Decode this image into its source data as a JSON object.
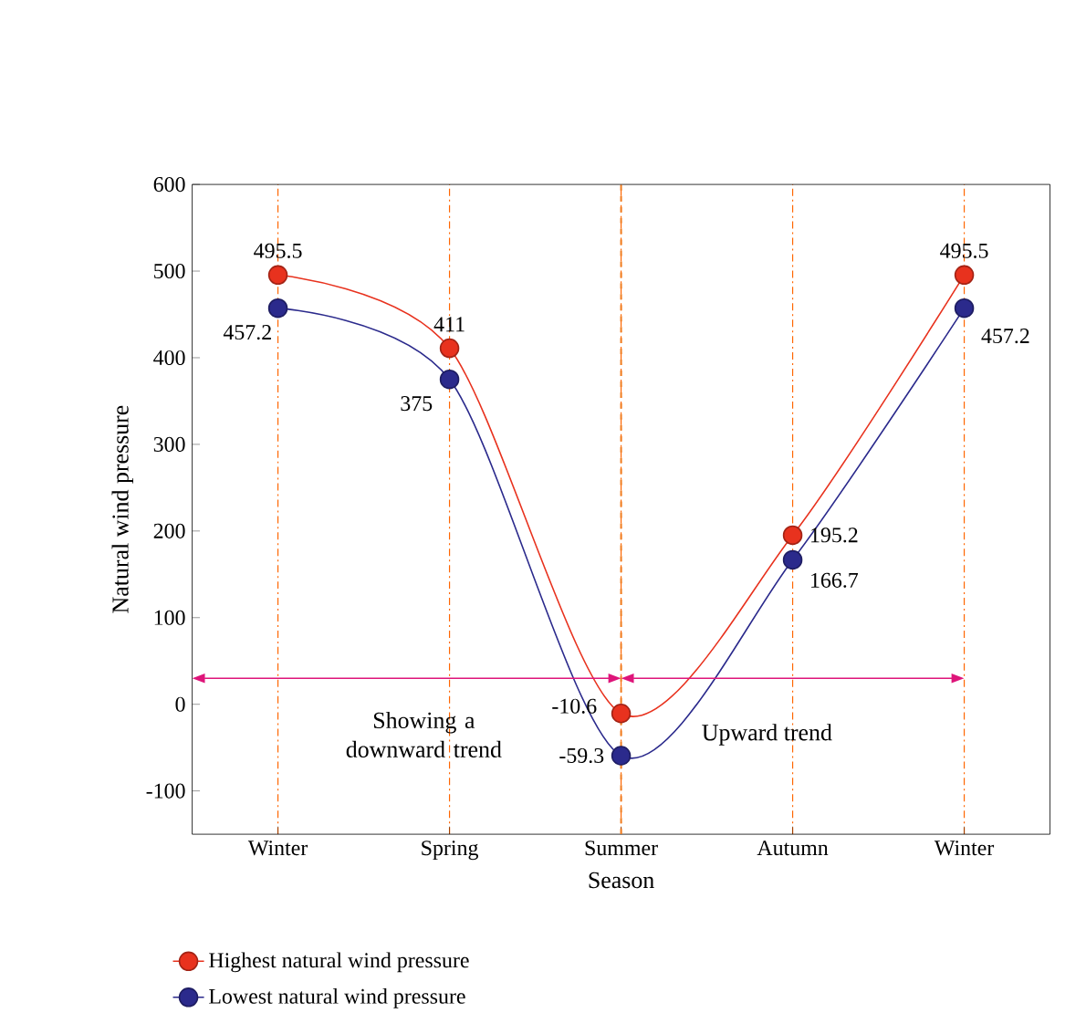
{
  "chart_data": {
    "type": "line",
    "xlabel": "Season",
    "ylabel": "Natural wind pressure",
    "categories": [
      "Winter",
      "Spring",
      "Summer",
      "Autumn",
      "Winter"
    ],
    "series": [
      {
        "name": "Highest natural wind pressure",
        "color": "#e8321e",
        "values": [
          495.5,
          411,
          -10.6,
          195.2,
          495.5
        ]
      },
      {
        "name": "Lowest natural wind pressure",
        "color": "#2b2a8c",
        "values": [
          457.2,
          375,
          -59.3,
          166.7,
          457.2
        ]
      }
    ],
    "ylim": [
      -150,
      600
    ],
    "yticks": [
      -100,
      0,
      100,
      200,
      300,
      400,
      500,
      600
    ],
    "ref_lines": [
      {
        "axis": "x",
        "value": "Summer",
        "color": "#f07c1e",
        "line_style": "dashed"
      }
    ],
    "grid": "x",
    "marker": "circle",
    "legend": "bottom",
    "data_labels": true,
    "annotations": [
      "Showing a downward trend",
      "Upward trend"
    ]
  }
}
